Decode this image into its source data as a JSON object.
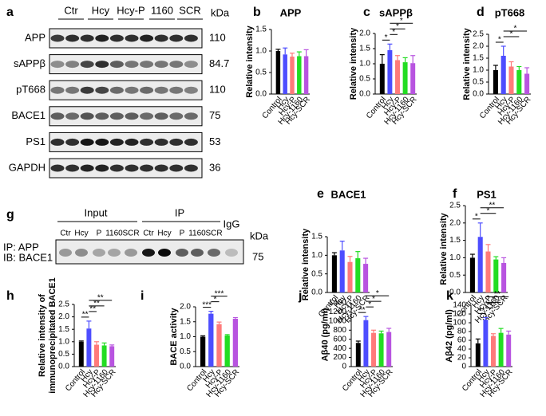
{
  "chart_data": [
    {
      "type": "bar",
      "panel": "b",
      "title": "APP",
      "ylabel": "Relative intensity",
      "categories": [
        "Control",
        "Hcy",
        "Hcy-P",
        "Hcy-1160",
        "Hcy-SCR"
      ],
      "values": [
        1.0,
        0.92,
        0.87,
        0.88,
        0.88
      ],
      "errors": [
        0.04,
        0.15,
        0.08,
        0.1,
        0.15
      ],
      "colors": [
        "#000000",
        "#4d4dff",
        "#ff7a7a",
        "#22dd22",
        "#b854e0"
      ],
      "ylim": [
        0,
        1.5
      ],
      "yticks": [
        {
          "value": 0,
          "label": "0.0"
        },
        0.5,
        {
          "value": 1,
          "label": "1.0"
        },
        1.5
      ],
      "brackets": []
    },
    {
      "type": "bar",
      "panel": "c",
      "title": "sAPPβ",
      "ylabel": "Relative intensity",
      "categories": [
        "Control",
        "Hcy",
        "Hcy-P",
        "Hcy-1160",
        "Hcy-SCR"
      ],
      "values": [
        1.0,
        1.45,
        1.12,
        1.05,
        1.02
      ],
      "errors": [
        0.3,
        0.2,
        0.15,
        0.15,
        0.25
      ],
      "colors": [
        "#000000",
        "#4d4dff",
        "#ff7a7a",
        "#22dd22",
        "#b854e0"
      ],
      "ylim": [
        0,
        2
      ],
      "yticks": [
        {
          "value": 0,
          "label": "0.0"
        },
        0.5,
        {
          "value": 1,
          "label": "1.0"
        },
        1.5,
        {
          "value": 2,
          "label": "2.0"
        }
      ],
      "brackets": [
        {
          "label": "*",
          "between": [
            "Control",
            "Hcy"
          ]
        },
        {
          "label": "*",
          "between": [
            "Hcy",
            "Hcy-P"
          ]
        },
        {
          "label": "*",
          "between": [
            "Hcy",
            "Hcy-1160"
          ]
        },
        {
          "label": "*",
          "between": [
            "Hcy",
            "Hcy-SCR"
          ]
        }
      ]
    },
    {
      "type": "bar",
      "panel": "d",
      "title": "pT668",
      "ylabel": "Relative intensity",
      "categories": [
        "Control",
        "Hcy",
        "Hcy-P",
        "Hcy-1160",
        "Hcy-SCR"
      ],
      "values": [
        1.0,
        1.6,
        1.15,
        1.0,
        0.85
      ],
      "errors": [
        0.2,
        0.4,
        0.2,
        0.15,
        0.25
      ],
      "colors": [
        "#000000",
        "#4d4dff",
        "#ff7a7a",
        "#22dd22",
        "#b854e0"
      ],
      "ylim": [
        0,
        2.5
      ],
      "yticks": [
        {
          "value": 0,
          "label": "0.0"
        },
        0.5,
        {
          "value": 1,
          "label": "1.0"
        },
        1.5,
        {
          "value": 2,
          "label": "2.0"
        },
        2.5
      ],
      "brackets": [
        {
          "label": "*",
          "between": [
            "Control",
            "Hcy"
          ]
        },
        {
          "label": "*",
          "between": [
            "Hcy",
            "Hcy-1160"
          ]
        },
        {
          "label": "*",
          "between": [
            "Hcy",
            "Hcy-SCR"
          ]
        }
      ]
    },
    {
      "type": "bar",
      "panel": "e",
      "title": "BACE1",
      "ylabel": "Relative intensity",
      "categories": [
        "Control",
        "Hcy",
        "Hcy-P",
        "Hcy-1160",
        "Hcy-SCR"
      ],
      "values": [
        1.0,
        1.13,
        0.82,
        0.92,
        0.77
      ],
      "errors": [
        0.07,
        0.25,
        0.15,
        0.18,
        0.15
      ],
      "colors": [
        "#000000",
        "#4d4dff",
        "#ff7a7a",
        "#22dd22",
        "#b854e0"
      ],
      "ylim": [
        0,
        1.5
      ],
      "yticks": [
        {
          "value": 0,
          "label": "0.0"
        },
        0.5,
        {
          "value": 1,
          "label": "1.0"
        },
        1.5
      ],
      "brackets": []
    },
    {
      "type": "bar",
      "panel": "f",
      "title": "PS1",
      "ylabel": "Relative intensity",
      "categories": [
        "Control",
        "Hcy",
        "Hcy-P",
        "Hcy-1160",
        "Hcy-SCR"
      ],
      "values": [
        1.0,
        1.6,
        1.18,
        0.95,
        0.85
      ],
      "errors": [
        0.1,
        0.4,
        0.2,
        0.08,
        0.15
      ],
      "colors": [
        "#000000",
        "#4d4dff",
        "#ff7a7a",
        "#22dd22",
        "#b854e0"
      ],
      "ylim": [
        0,
        2.5
      ],
      "yticks": [
        {
          "value": 0,
          "label": "0.0"
        },
        0.5,
        {
          "value": 1,
          "label": "1.0"
        },
        1.5,
        {
          "value": 2,
          "label": "2.0"
        },
        2.5
      ],
      "brackets": [
        {
          "label": "*",
          "between": [
            "Control",
            "Hcy"
          ]
        },
        {
          "label": "*",
          "between": [
            "Hcy",
            "Hcy-1160"
          ]
        },
        {
          "label": "**",
          "between": [
            "Hcy",
            "Hcy-SCR"
          ]
        }
      ]
    },
    {
      "type": "bar",
      "panel": "h",
      "ylabel": [
        "Relative intensity of",
        "immunoprecipitated BACE1"
      ],
      "categories": [
        "Control",
        "Hcy",
        "Hcy-P",
        "Hcy-1160",
        "Hcy-SCR"
      ],
      "values": [
        1.0,
        1.53,
        0.88,
        0.85,
        0.82
      ],
      "errors": [
        0.03,
        0.3,
        0.12,
        0.1,
        0.05
      ],
      "colors": [
        "#000000",
        "#4d4dff",
        "#ff7a7a",
        "#22dd22",
        "#b854e0"
      ],
      "ylim": [
        0,
        2.5
      ],
      "yticks": [
        {
          "value": 0,
          "label": "0.0"
        },
        0.5,
        {
          "value": 1,
          "label": "1.0"
        },
        1.5,
        {
          "value": 2,
          "label": "2.0"
        },
        2.5
      ],
      "brackets": [
        {
          "label": "**",
          "between": [
            "Control",
            "Hcy"
          ]
        },
        {
          "label": "**",
          "between": [
            "Hcy",
            "Hcy-P"
          ]
        },
        {
          "label": "**",
          "between": [
            "Hcy",
            "Hcy-1160"
          ]
        },
        {
          "label": "**",
          "between": [
            "Hcy",
            "Hcy-SCR"
          ]
        }
      ]
    },
    {
      "type": "bar",
      "panel": "i",
      "ylabel": "BACE activity",
      "categories": [
        "Control",
        "Hcy",
        "Hcy-P",
        "Hcy-1160",
        "Hcy-SCR"
      ],
      "values": [
        1.0,
        1.77,
        1.42,
        1.04,
        1.6
      ],
      "errors": [
        0.03,
        0.08,
        0.07,
        0.03,
        0.04
      ],
      "colors": [
        "#000000",
        "#4d4dff",
        "#ff7a7a",
        "#22dd22",
        "#b854e0"
      ],
      "ylim": [
        0,
        2
      ],
      "yticks": [
        {
          "value": 0,
          "label": "0.0"
        },
        0.5,
        {
          "value": 1,
          "label": "1.0"
        },
        1.5,
        {
          "value": 2,
          "label": "2.0"
        }
      ],
      "brackets": [
        {
          "label": "***",
          "between": [
            "Control",
            "Hcy"
          ]
        },
        {
          "label": "*",
          "between": [
            "Hcy",
            "Hcy-P"
          ]
        },
        {
          "label": "***",
          "between": [
            "Hcy",
            "Hcy-1160"
          ]
        }
      ]
    },
    {
      "type": "bar",
      "panel": "j",
      "ylabel": "Aβ40 (pg/ml)",
      "categories": [
        "Control",
        "Hcy",
        "Hcy-P",
        "Hcy-1160",
        "Hcy-SCR"
      ],
      "values": [
        520,
        1020,
        740,
        730,
        760
      ],
      "errors": [
        40,
        80,
        60,
        50,
        80
      ],
      "colors": [
        "#000000",
        "#4d4dff",
        "#ff7a7a",
        "#22dd22",
        "#b854e0"
      ],
      "ylim": [
        0,
        1400
      ],
      "yticks": [
        0,
        200,
        400,
        600,
        800,
        1000,
        1200,
        1400
      ],
      "brackets": [
        {
          "label": "**",
          "between": [
            "Control",
            "Hcy"
          ]
        },
        {
          "label": "*",
          "between": [
            "Hcy",
            "Hcy-P"
          ]
        },
        {
          "label": "*",
          "between": [
            "Hcy",
            "Hcy-1160"
          ]
        },
        {
          "label": "*",
          "between": [
            "Hcy",
            "Hcy-SCR"
          ]
        }
      ]
    },
    {
      "type": "bar",
      "panel": "k",
      "ylabel": "Aβ42 (pg/ml)",
      "categories": [
        "Control",
        "Hcy",
        "Hcy-P",
        "Hcy-1160",
        "Hcy-SCR"
      ],
      "values": [
        53,
        107,
        70,
        77,
        73
      ],
      "errors": [
        10,
        5,
        5,
        10,
        8
      ],
      "colors": [
        "#000000",
        "#4d4dff",
        "#ff7a7a",
        "#22dd22",
        "#b854e0"
      ],
      "ylim": [
        0,
        140
      ],
      "yticks": [
        0,
        20,
        40,
        60,
        80,
        100,
        120,
        140
      ],
      "brackets": [
        {
          "label": "**",
          "between": [
            "Control",
            "Hcy"
          ]
        },
        {
          "label": "**",
          "between": [
            "Hcy",
            "Hcy-P"
          ]
        },
        {
          "label": "*",
          "between": [
            "Hcy",
            "Hcy-1160"
          ]
        },
        {
          "label": "**",
          "between": [
            "Hcy",
            "Hcy-SCR"
          ]
        }
      ]
    }
  ],
  "blot_a": {
    "panel": "a",
    "lanes": [
      "Ctr",
      "Hcy",
      "Hcy-P",
      "1160",
      "SCR"
    ],
    "unit": "kDa",
    "rows": [
      {
        "label": "APP",
        "kda": 110
      },
      {
        "label": "sAPPβ",
        "kda": 84.7
      },
      {
        "label": "pT668",
        "kda": 110
      },
      {
        "label": "BACE1",
        "kda": 75
      },
      {
        "label": "PS1",
        "kda": 53
      },
      {
        "label": "GAPDH",
        "kda": 36
      }
    ]
  },
  "blot_g": {
    "panel": "g",
    "groups": [
      "Input",
      "IP"
    ],
    "control": "IgG",
    "lanes": [
      "Ctr",
      "Hcy",
      "P",
      "1160",
      "SCR",
      "Ctr",
      "Hcy",
      "P",
      "1160",
      "SCR"
    ],
    "unit": "kDa",
    "row_labels": [
      "IP: APP",
      "IB: BACE1"
    ],
    "kda": 75
  }
}
